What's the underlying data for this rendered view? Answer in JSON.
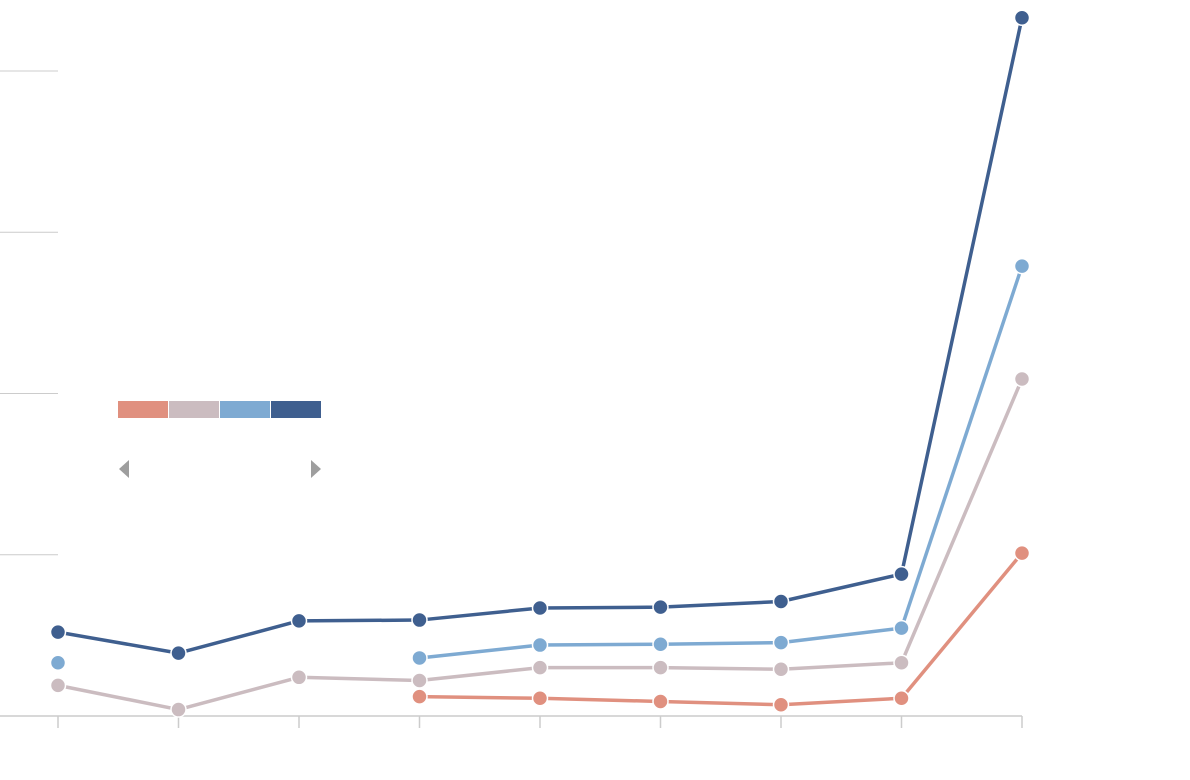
{
  "chart_data": {
    "type": "line",
    "title": "",
    "xlabel": "",
    "ylabel": "",
    "x": [
      1,
      2,
      3,
      4,
      5,
      6,
      7,
      8,
      9
    ],
    "xlim": [
      1,
      9
    ],
    "ylim": [
      0,
      4000
    ],
    "y_ticks": [
      0,
      1000,
      2000,
      3000,
      4000
    ],
    "grid": false,
    "legend_position": "left",
    "series": [
      {
        "color": "#e0907f",
        "values": [
          null,
          null,
          null,
          120,
          110,
          90,
          70,
          110,
          1010
        ]
      },
      {
        "color": "#cbbcc0",
        "values": [
          190,
          40,
          240,
          220,
          300,
          300,
          290,
          330,
          2090
        ]
      },
      {
        "color": "#7eaad2",
        "values": [
          330,
          null,
          null,
          360,
          440,
          445,
          455,
          545,
          2790
        ]
      },
      {
        "color": "#3f5f8f",
        "values": [
          520,
          390,
          590,
          595,
          670,
          675,
          710,
          880,
          4330
        ]
      }
    ]
  },
  "legend": {
    "swatches": [
      "#e0907f",
      "#cbbcc0",
      "#7eaad2",
      "#3f5f8f"
    ]
  }
}
